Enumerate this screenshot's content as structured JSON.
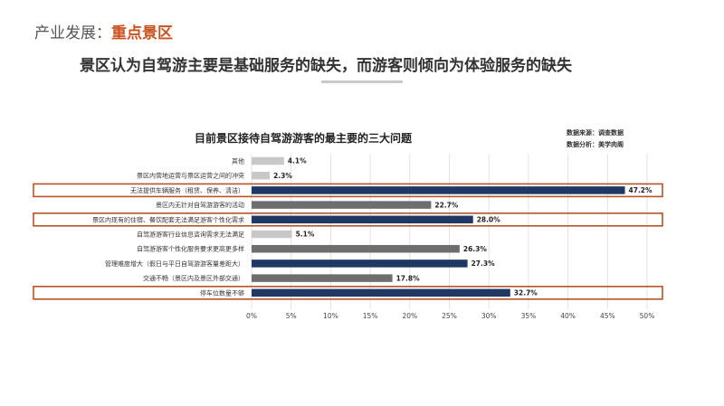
{
  "header": {
    "section_prefix": "产业发展：",
    "section_name": "重点景区",
    "subtitle": "景区认为自驾游主要是基础服务的缺失，而游客则倾向为体验服务的缺失"
  },
  "colors": {
    "accent": "#c8531e",
    "highlight_border": "#b5532a",
    "bar_navy": "#1f3864",
    "bar_gray": "#6e6e6e",
    "bar_light": "#c8c8c8"
  },
  "chart_data": {
    "type": "bar",
    "orientation": "horizontal",
    "title": "目前景区接待自驾游游客的最主要的三大问题",
    "source_lines": [
      "数据来源：调查数据",
      "数据分析：美学肉阁"
    ],
    "categories": [
      "其他",
      "景区内营地运营与景区运营之间的冲突",
      "无法提供车辆服务（租赁、保养、清洁）",
      "景区内无针对自驾游游客的活动",
      "景区内现有的住宿、餐饮配套无法满足游客个性化需求",
      "自驾游游客行业信息咨询需求无法满足",
      "自驾游游客个性化服务要求更高更多样",
      "管理难度增大（假日与平日自驾游游客量差距大）",
      "交通不畅（景区内及景区外部交通）",
      "停车位数量不够"
    ],
    "values": [
      4.1,
      2.3,
      47.2,
      22.7,
      28.0,
      5.1,
      26.3,
      27.3,
      17.8,
      32.7
    ],
    "value_labels": [
      "4.1%",
      "2.3%",
      "47.2%",
      "22.7%",
      "28.0%",
      "5.1%",
      "26.3%",
      "27.3%",
      "17.8%",
      "32.7%"
    ],
    "bar_color_keys": [
      "bar_light",
      "bar_light",
      "bar_navy",
      "bar_gray",
      "bar_navy",
      "bar_light",
      "bar_gray",
      "bar_navy",
      "bar_gray",
      "bar_navy"
    ],
    "highlighted_indices": [
      2,
      4,
      9
    ],
    "xlim": [
      0,
      50
    ],
    "xticks": [
      0,
      5,
      10,
      15,
      20,
      25,
      30,
      35,
      40,
      45,
      50
    ],
    "xtick_labels": [
      "0%",
      "5%",
      "10%",
      "15%",
      "20%",
      "25%",
      "30%",
      "35%",
      "40%",
      "45%",
      "50%"
    ],
    "grid": true
  }
}
